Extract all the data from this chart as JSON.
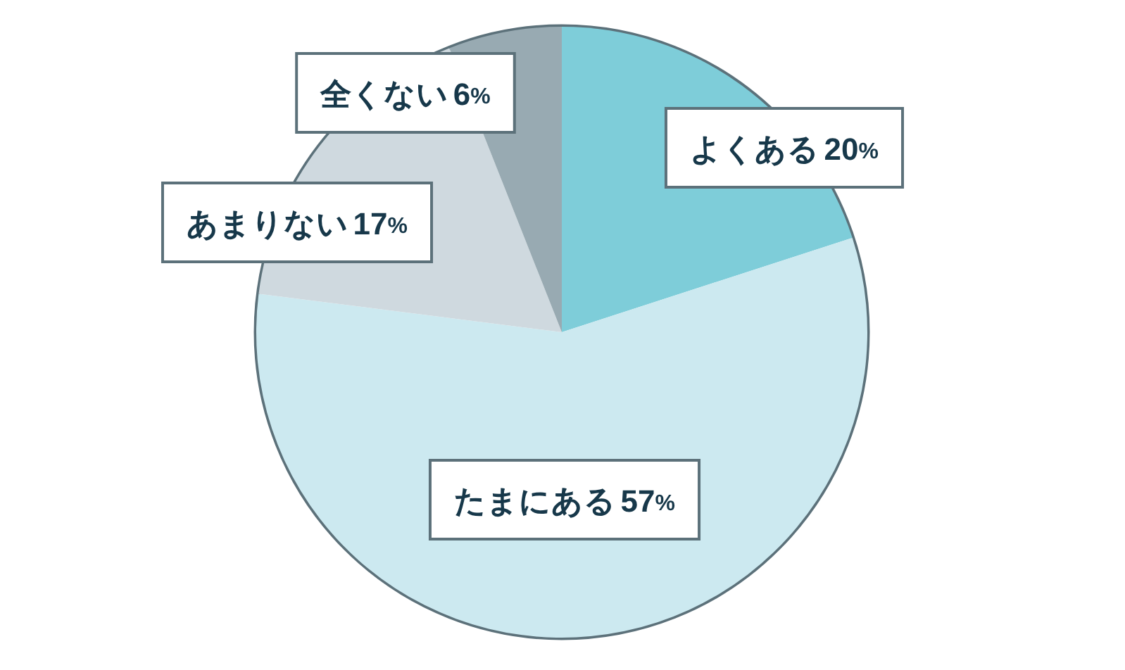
{
  "chart_data": {
    "type": "pie",
    "categories": [
      "よくある",
      "たまにある",
      "あまりない",
      "全くない"
    ],
    "values": [
      20,
      57,
      17,
      6
    ],
    "colors": [
      "#7ecdd9",
      "#cce9f0",
      "#cfd9df",
      "#98aab2"
    ],
    "value_labels": [
      "20%",
      "57%",
      "17%",
      "6%"
    ]
  }
}
